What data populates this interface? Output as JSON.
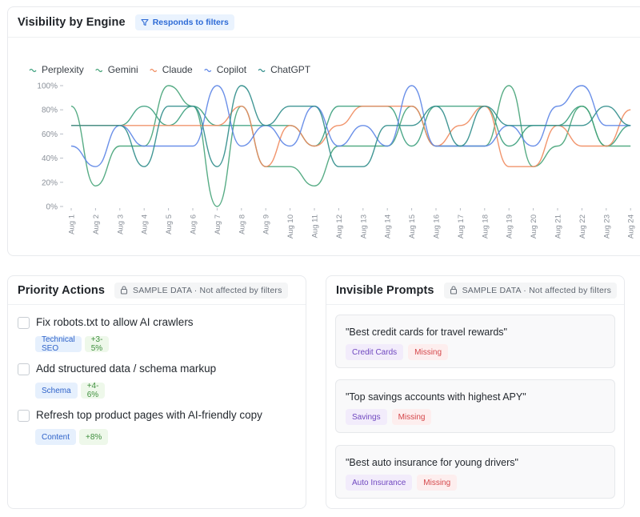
{
  "chart_card": {
    "title": "Visibility by Engine",
    "badge": "Responds to filters",
    "badge_icon": "filter-icon"
  },
  "chart_data": {
    "type": "line",
    "title": "",
    "xlabel": "",
    "ylabel": "",
    "ylim": [
      0,
      100
    ],
    "y_ticks": [
      "0%",
      "20%",
      "40%",
      "60%",
      "80%",
      "100%"
    ],
    "legend_position": "top-left",
    "categories": [
      "Aug 1",
      "Aug 2",
      "Aug 3",
      "Aug 4",
      "Aug 5",
      "Aug 6",
      "Aug 7",
      "Aug 8",
      "Aug 9",
      "Aug 10",
      "Aug 11",
      "Aug 12",
      "Aug 13",
      "Aug 14",
      "Aug 15",
      "Aug 16",
      "Aug 17",
      "Aug 18",
      "Aug 19",
      "Aug 20",
      "Aug 21",
      "Aug 22",
      "Aug 23",
      "Aug 24"
    ],
    "series": [
      {
        "name": "Perplexity",
        "color": "#3a9f7c",
        "values": [
          67,
          67,
          67,
          83,
          67,
          83,
          67,
          67,
          67,
          67,
          50,
          83,
          83,
          83,
          50,
          83,
          83,
          83,
          50,
          67,
          67,
          83,
          50,
          67
        ]
      },
      {
        "name": "Gemini",
        "color": "#45a378",
        "values": [
          83,
          17,
          50,
          50,
          100,
          83,
          0,
          83,
          33,
          33,
          17,
          50,
          50,
          50,
          83,
          50,
          50,
          50,
          100,
          33,
          50,
          83,
          50,
          50
        ]
      },
      {
        "name": "Claude",
        "color": "#f08a5d",
        "values": [
          67,
          67,
          67,
          67,
          67,
          67,
          67,
          83,
          33,
          67,
          50,
          67,
          83,
          83,
          83,
          50,
          67,
          83,
          33,
          33,
          67,
          50,
          50,
          80
        ]
      },
      {
        "name": "Copilot",
        "color": "#5b84e6",
        "values": [
          50,
          33,
          67,
          50,
          50,
          50,
          100,
          50,
          67,
          50,
          83,
          50,
          67,
          50,
          100,
          50,
          50,
          50,
          67,
          50,
          83,
          100,
          67,
          67
        ]
      },
      {
        "name": "ChatGPT",
        "color": "#2e8c8a",
        "values": [
          67,
          67,
          67,
          33,
          83,
          83,
          33,
          100,
          67,
          83,
          83,
          33,
          33,
          67,
          67,
          83,
          50,
          83,
          67,
          67,
          67,
          67,
          83,
          67
        ]
      }
    ]
  },
  "priority_actions": {
    "title": "Priority Actions",
    "badge": "SAMPLE DATA · Not affected by filters",
    "badge_icon": "lock-icon",
    "items": [
      {
        "text": "Fix robots.txt to allow AI crawlers",
        "category": "Technical SEO",
        "impact": "+3-5%"
      },
      {
        "text": "Add structured data / schema markup",
        "category": "Schema",
        "impact": "+4-6%"
      },
      {
        "text": "Refresh top product pages with AI-friendly copy",
        "category": "Content",
        "impact": "+8%"
      }
    ]
  },
  "invisible_prompts": {
    "title": "Invisible Prompts",
    "badge": "SAMPLE DATA · Not affected by filters",
    "badge_icon": "lock-icon",
    "items": [
      {
        "text": "\"Best credit cards for travel rewards\"",
        "category": "Credit Cards",
        "status": "Missing"
      },
      {
        "text": "\"Top savings accounts with highest APY\"",
        "category": "Savings",
        "status": "Missing"
      },
      {
        "text": "\"Best auto insurance for young drivers\"",
        "category": "Auto Insurance",
        "status": "Missing"
      }
    ]
  }
}
